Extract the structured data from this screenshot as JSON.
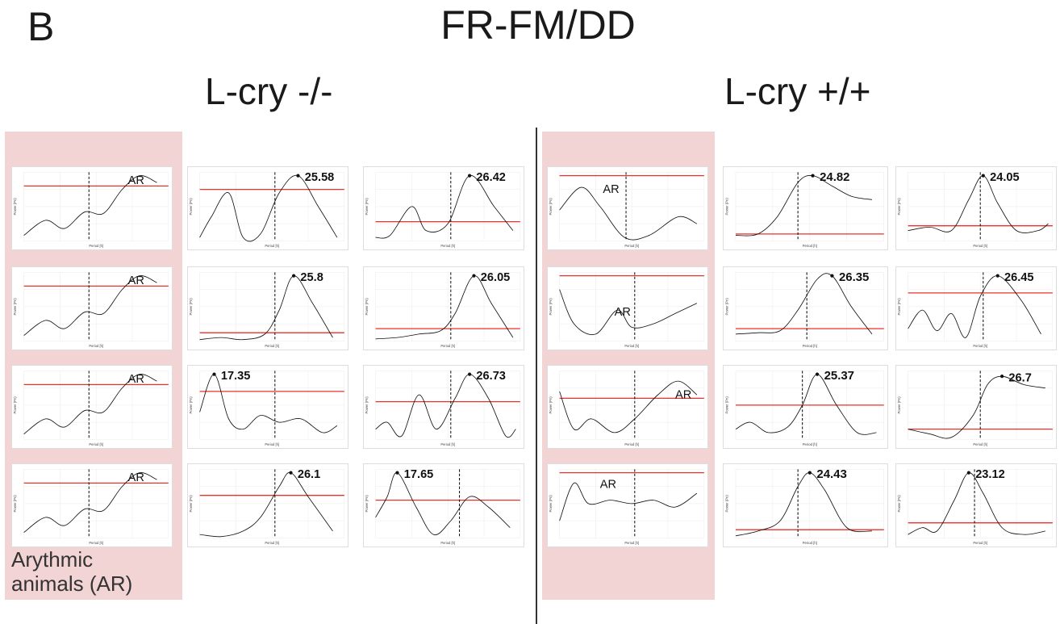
{
  "figure": {
    "panel_letter": "B",
    "title": "FR-FM/DD",
    "groups": [
      "L-cry -/-",
      "L-cry +/+"
    ],
    "arrhythmic_caption_line1": "Arythmic",
    "arrhythmic_caption_line2": "animals (AR)"
  },
  "colors": {
    "threshold_line": "#e8322a",
    "arrhythmic_shade": "#f2d4d4",
    "curve": "#111111",
    "grid": "#ebebeb"
  },
  "chart_data": [
    {
      "type": "line",
      "group": "L-cry -/-",
      "arrhythmic": true,
      "label": "AR",
      "xlabel": "Period [h]",
      "ylabel": "Power (Pn)"
    },
    {
      "type": "line",
      "group": "L-cry -/-",
      "arrhythmic": true,
      "label": "AR",
      "xlabel": "Period [h]",
      "ylabel": "Power (Pn)"
    },
    {
      "type": "line",
      "group": "L-cry -/-",
      "arrhythmic": true,
      "label": "AR",
      "xlabel": "Period [h]",
      "ylabel": "Power (Pn)"
    },
    {
      "type": "line",
      "group": "L-cry -/-",
      "arrhythmic": true,
      "label": "AR",
      "xlabel": "Period [h]",
      "ylabel": "Power (Pn)"
    },
    {
      "type": "line",
      "group": "L-cry -/-",
      "arrhythmic": false,
      "peak_period": "25.58",
      "label": "25.58",
      "xlabel": "Period [h]",
      "ylabel": "Power (Pn)"
    },
    {
      "type": "line",
      "group": "L-cry -/-",
      "arrhythmic": false,
      "peak_period": "26.42",
      "label": "26.42",
      "xlabel": "Period [h]",
      "ylabel": "Power (Pn)"
    },
    {
      "type": "line",
      "group": "L-cry -/-",
      "arrhythmic": false,
      "peak_period": "25.8",
      "label": "25.8",
      "xlabel": "Period [h]",
      "ylabel": "Power (Pn)"
    },
    {
      "type": "line",
      "group": "L-cry -/-",
      "arrhythmic": false,
      "peak_period": "26.05",
      "label": "26.05",
      "xlabel": "Period [h]",
      "ylabel": "Power (Pn)"
    },
    {
      "type": "line",
      "group": "L-cry -/-",
      "arrhythmic": false,
      "peak_period": "17.35",
      "label": "17.35",
      "xlabel": "Period [h]",
      "ylabel": "Power (Pn)"
    },
    {
      "type": "line",
      "group": "L-cry -/-",
      "arrhythmic": false,
      "peak_period": "26.73",
      "label": "26.73",
      "xlabel": "Period [h]",
      "ylabel": "Power (Pn)"
    },
    {
      "type": "line",
      "group": "L-cry -/-",
      "arrhythmic": false,
      "peak_period": "26.1",
      "label": "26.1",
      "xlabel": "Period [h]",
      "ylabel": "Power (Pn)"
    },
    {
      "type": "line",
      "group": "L-cry -/-",
      "arrhythmic": false,
      "peak_period": "17.65",
      "label": "17.65",
      "xlabel": "Period [h]",
      "ylabel": "Power (Pn)"
    },
    {
      "type": "line",
      "group": "L-cry +/+",
      "arrhythmic": true,
      "label": "AR",
      "xlabel": "Period [h]",
      "ylabel": "Power (Pn)"
    },
    {
      "type": "line",
      "group": "L-cry +/+",
      "arrhythmic": true,
      "label": "AR",
      "xlabel": "Period [h]",
      "ylabel": "Power (Pn)"
    },
    {
      "type": "line",
      "group": "L-cry +/+",
      "arrhythmic": true,
      "label": "AR",
      "xlabel": "Period [h]",
      "ylabel": "Power (Pn)"
    },
    {
      "type": "line",
      "group": "L-cry +/+",
      "arrhythmic": true,
      "label": "AR",
      "xlabel": "Period [h]",
      "ylabel": "Power (Pn)"
    },
    {
      "type": "line",
      "group": "L-cry +/+",
      "arrhythmic": false,
      "peak_period": "24.82",
      "label": "24.82",
      "xlabel": "Period [h]",
      "ylabel": "Power (Pn)"
    },
    {
      "type": "line",
      "group": "L-cry +/+",
      "arrhythmic": false,
      "peak_period": "24.05",
      "label": "24.05",
      "xlabel": "Period [h]",
      "ylabel": "Power (Pn)"
    },
    {
      "type": "line",
      "group": "L-cry +/+",
      "arrhythmic": false,
      "peak_period": "26.35",
      "label": "26.35",
      "xlabel": "Period [h]",
      "ylabel": "Power (Pn)"
    },
    {
      "type": "line",
      "group": "L-cry +/+",
      "arrhythmic": false,
      "peak_period": "26.45",
      "label": "26.45",
      "xlabel": "Period [h]",
      "ylabel": "Power (Pn)"
    },
    {
      "type": "line",
      "group": "L-cry +/+",
      "arrhythmic": false,
      "peak_period": "25.37",
      "label": "25.37",
      "xlabel": "Period [h]",
      "ylabel": "Power (Pn)"
    },
    {
      "type": "line",
      "group": "L-cry +/+",
      "arrhythmic": false,
      "peak_period": "26.7",
      "label": "26.7",
      "xlabel": "Period [h]",
      "ylabel": "Power (Pn)"
    },
    {
      "type": "line",
      "group": "L-cry +/+",
      "arrhythmic": false,
      "peak_period": "24.43",
      "label": "24.43",
      "xlabel": "Period [h]",
      "ylabel": "Power (Pn)"
    },
    {
      "type": "line",
      "group": "L-cry +/+",
      "arrhythmic": false,
      "peak_period": "23.12",
      "label": "23.12",
      "xlabel": "Period [h]",
      "ylabel": "Power (Pn)"
    }
  ]
}
